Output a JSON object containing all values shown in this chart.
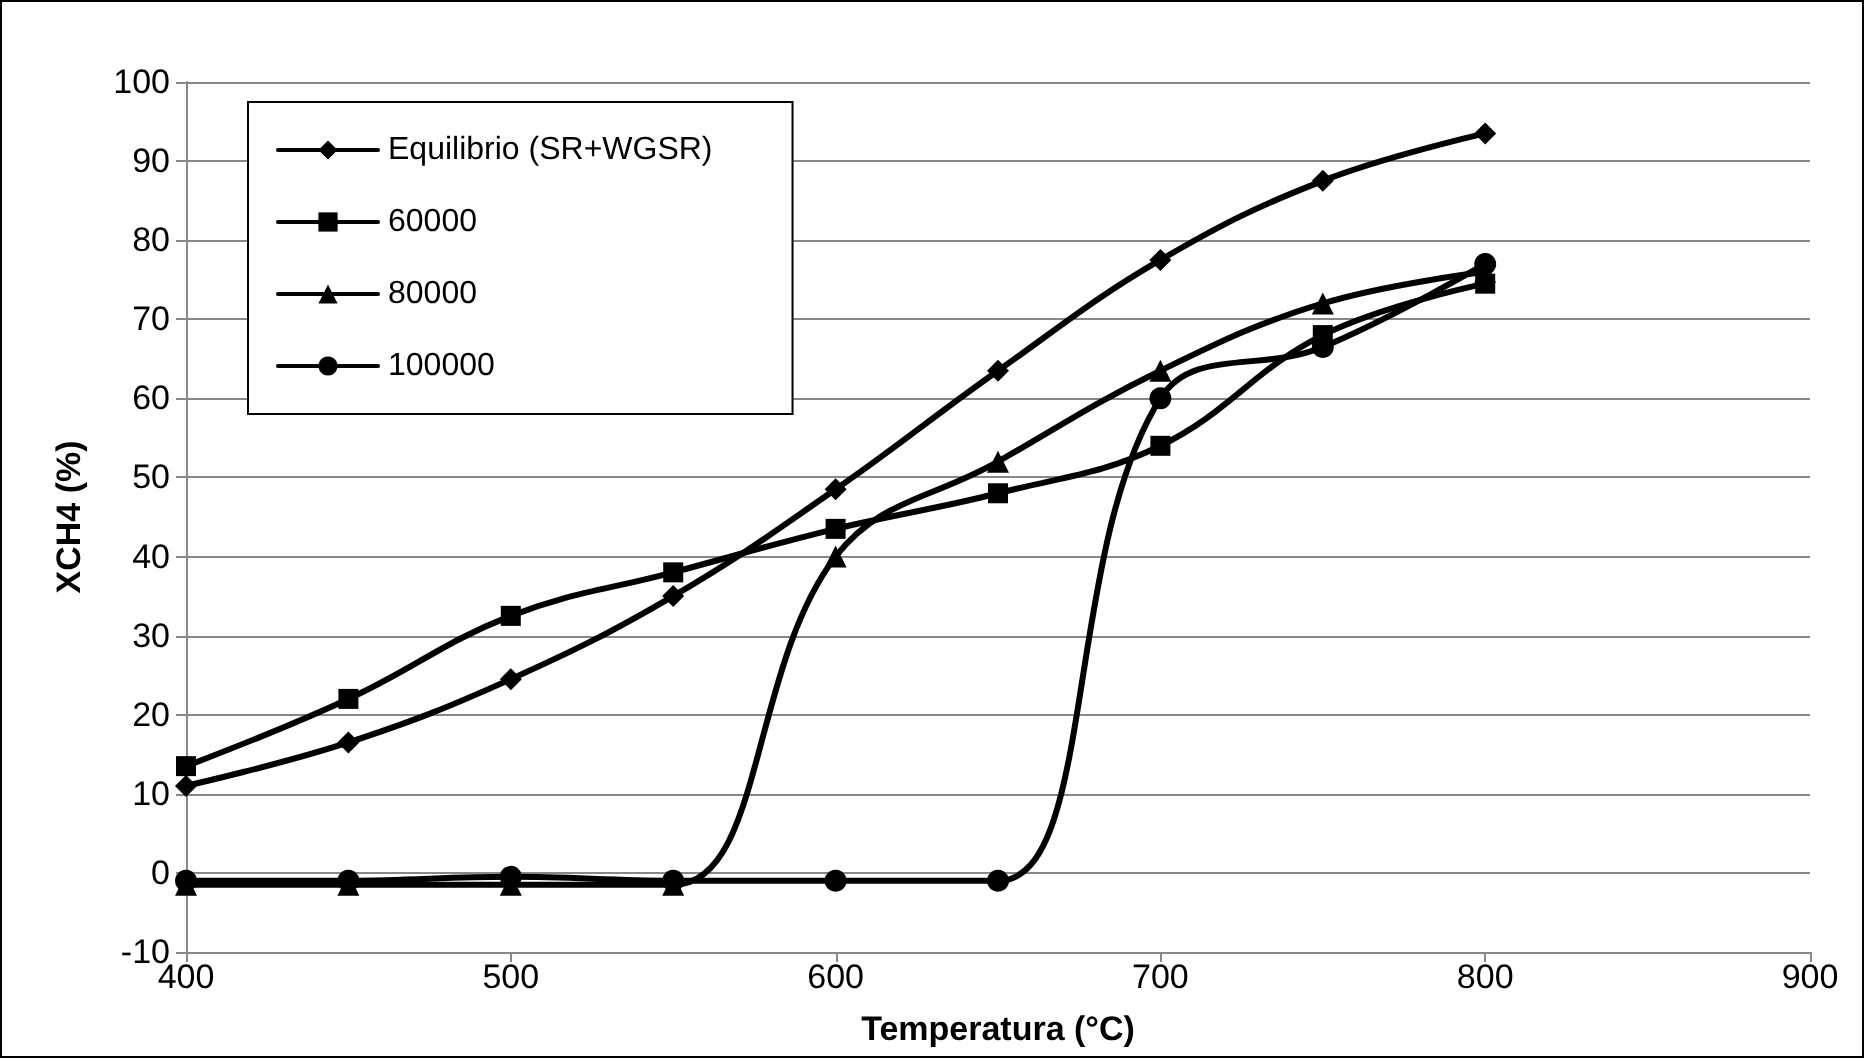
{
  "chart_data": {
    "type": "line",
    "xlabel": "Temperatura (°C)",
    "ylabel": "XCH4 (%)",
    "x": [
      400,
      450,
      500,
      550,
      600,
      650,
      700,
      750,
      800
    ],
    "series": [
      {
        "name": "Equilibrio (SR+WGSR)",
        "color": "#000000",
        "marker": "diamond",
        "values": [
          11,
          16.5,
          24.5,
          35,
          48.5,
          63.5,
          77.5,
          87.5,
          93.5
        ]
      },
      {
        "name": "60000",
        "color": "#000000",
        "marker": "square",
        "values": [
          13.5,
          22,
          32.5,
          38,
          43.5,
          48,
          54,
          68,
          74.5
        ]
      },
      {
        "name": "80000",
        "color": "#000000",
        "marker": "triangle",
        "values": [
          -1.5,
          -1.5,
          -1.5,
          -1.5,
          40,
          52,
          63.5,
          72,
          76
        ]
      },
      {
        "name": "100000",
        "color": "#000000",
        "marker": "circle",
        "values": [
          -1,
          -1,
          -0.5,
          -1,
          -1,
          -1,
          60,
          66.5,
          77
        ]
      }
    ],
    "xlim": [
      400,
      900
    ],
    "xticks": [
      400,
      500,
      600,
      700,
      800,
      900
    ],
    "ylim": [
      -10,
      100
    ],
    "yticks": [
      -10,
      0,
      10,
      20,
      30,
      40,
      50,
      60,
      70,
      80,
      90,
      100
    ],
    "grid": "y",
    "legend": "top left",
    "line_style": "solid"
  }
}
